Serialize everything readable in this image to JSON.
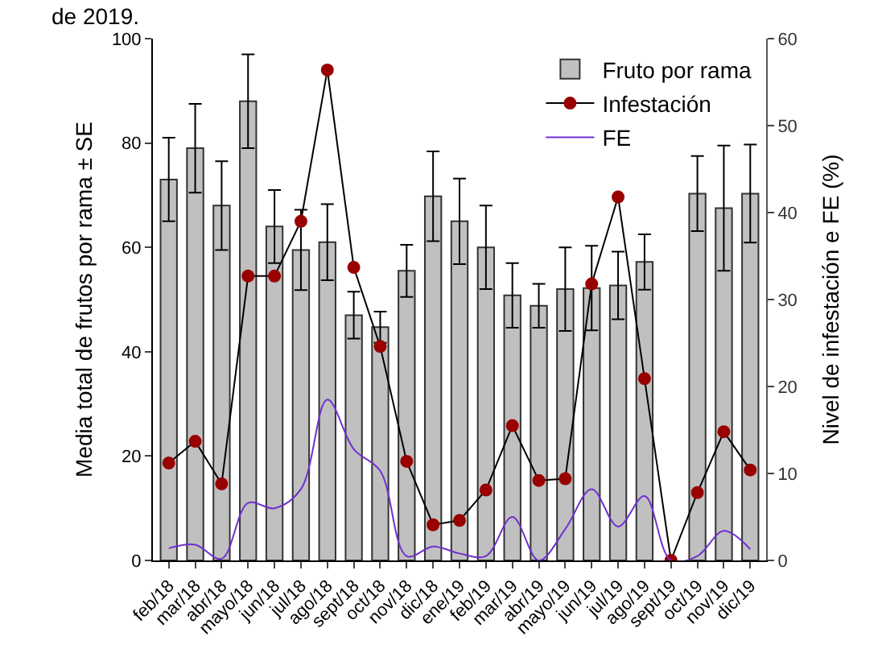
{
  "chart_data": {
    "type": "bar",
    "ylabel": "Media total de frutos por rama ± SE",
    "y2label": "Nivel de infestación e FE (%)",
    "annotations": [
      "de 2019."
    ],
    "categories": [
      "feb/18",
      "mar/18",
      "abr/18",
      "mayo/18",
      "jun/18",
      "jul/18",
      "ago/18",
      "sept/18",
      "oct/18",
      "nov/18",
      "dic/18",
      "ene/19",
      "feb/19",
      "mar/19",
      "abr/19",
      "mayo/19",
      "jun/19",
      "jul/19",
      "ago/19",
      "sept/19",
      "oct/19",
      "nov/19",
      "dic/19"
    ],
    "series": [
      {
        "name": "Fruto por rama",
        "color": "#c0c0c0",
        "values": [
          73,
          79,
          68,
          88,
          64,
          59.5,
          61,
          47,
          44.7,
          55.5,
          69.8,
          65,
          60,
          50.8,
          48.8,
          52,
          52.2,
          52.7,
          57.2,
          null,
          70.3,
          67.5,
          70.3
        ],
        "errors": [
          8,
          8.5,
          8.5,
          9,
          7,
          7.7,
          7.3,
          4.5,
          3,
          5,
          8.6,
          8.2,
          8,
          6.2,
          4.2,
          8,
          8.1,
          6.5,
          5.3,
          null,
          7.2,
          12,
          9.4
        ]
      },
      {
        "name": "Infestación",
        "type": "line",
        "axis": "y2",
        "color": "#990000",
        "marker": "circle",
        "values": [
          11.2,
          13.7,
          8.8,
          32.7,
          32.7,
          39,
          56.4,
          33.7,
          24.6,
          11.4,
          4.1,
          4.6,
          8.1,
          15.5,
          9.2,
          9.4,
          31.8,
          41.8,
          20.9,
          0,
          7.8,
          14.8,
          10.4
        ]
      },
      {
        "name": "FE",
        "type": "line",
        "axis": "y2",
        "color": "#7030d0",
        "marker": "none",
        "values": [
          1.4,
          1.8,
          0.2,
          6.6,
          6,
          8.2,
          18.5,
          12.8,
          10.3,
          0.5,
          1.6,
          0.8,
          0.5,
          5,
          0,
          3.6,
          8.2,
          3.9,
          7.4,
          0,
          0.5,
          3.4,
          1.3
        ]
      }
    ],
    "ylim": [
      0,
      100
    ],
    "yticks": [
      0,
      20,
      40,
      60,
      80,
      100
    ],
    "y2lim": [
      0,
      60
    ],
    "y2ticks": [
      0,
      10,
      20,
      30,
      40,
      50,
      60
    ],
    "grid": false,
    "legend": "top right"
  }
}
